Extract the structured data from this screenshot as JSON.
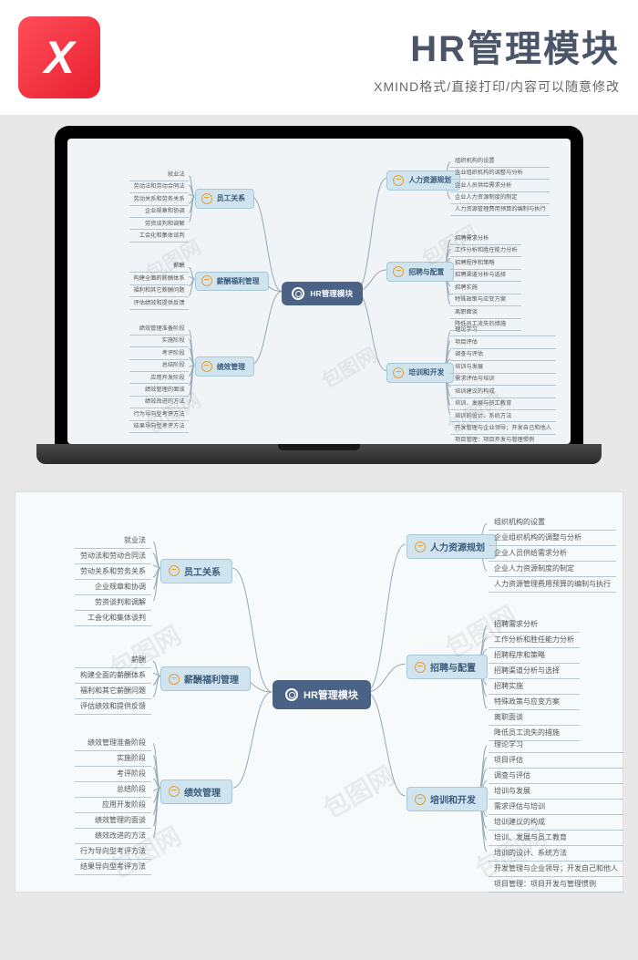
{
  "header": {
    "logo_letter": "X",
    "title": "HR管理模块",
    "subtitle": "XMIND格式/直接打印/内容可以随意修改"
  },
  "colors": {
    "page_bg": "#e8e8e8",
    "screen_bg": "#f0f4f7",
    "center_bg": "#4a6285",
    "branch_bg": "#cfe4ef",
    "branch_border": "#a8c8d8",
    "connector": "#94a8b5",
    "logo_from": "#ff4d5a",
    "logo_to": "#e8202f"
  },
  "mindmap": {
    "center": "HR管理模块",
    "left_branches": [
      {
        "label": "员工关系",
        "leaves": [
          "就业法",
          "劳动法和劳动合同法",
          "劳动关系和劳务关系",
          "企业规章和协调",
          "劳资谈判和调解",
          "工会化和集体谈判"
        ]
      },
      {
        "label": "薪酬福利管理",
        "leaves": [
          "薪酬",
          "构建全面的薪酬体系",
          "福利和其它薪酬问题",
          "评估绩效和提供反馈"
        ]
      },
      {
        "label": "绩效管理",
        "leaves": [
          "绩效管理准备阶段",
          "实施阶段",
          "考评阶段",
          "总结阶段",
          "应用开发阶段",
          "绩效管理的面谈",
          "绩效改进的方法",
          "行为导向型考评方法",
          "结果导向型考评方法"
        ]
      }
    ],
    "right_branches": [
      {
        "label": "人力资源规划",
        "leaves": [
          "组织机构的设置",
          "企业组织机构的调整与分析",
          "企业人员供给需求分析",
          "企业人力资源制度的制定",
          "人力资源管理费用预算的编制与执行"
        ]
      },
      {
        "label": "招聘与配置",
        "leaves": [
          "招聘需求分析",
          "工作分析和胜任能力分析",
          "招聘程序和策略",
          "招聘渠道分析与选择",
          "招聘实施",
          "特殊政策与应变方案",
          "离职面谈",
          "降低员工流失的措施"
        ]
      },
      {
        "label": "培训和开发",
        "leaves": [
          "理论学习",
          "项目评估",
          "调查与评估",
          "培训与发展",
          "需求评估与培训",
          "培训建议的构成",
          "培训、发展与员工教育",
          "培训的设计、系统方法",
          "开发管理与企业领导；开发自己和他人",
          "项目管理：项目开发与管理惯例"
        ]
      }
    ]
  },
  "watermark": "包图网"
}
